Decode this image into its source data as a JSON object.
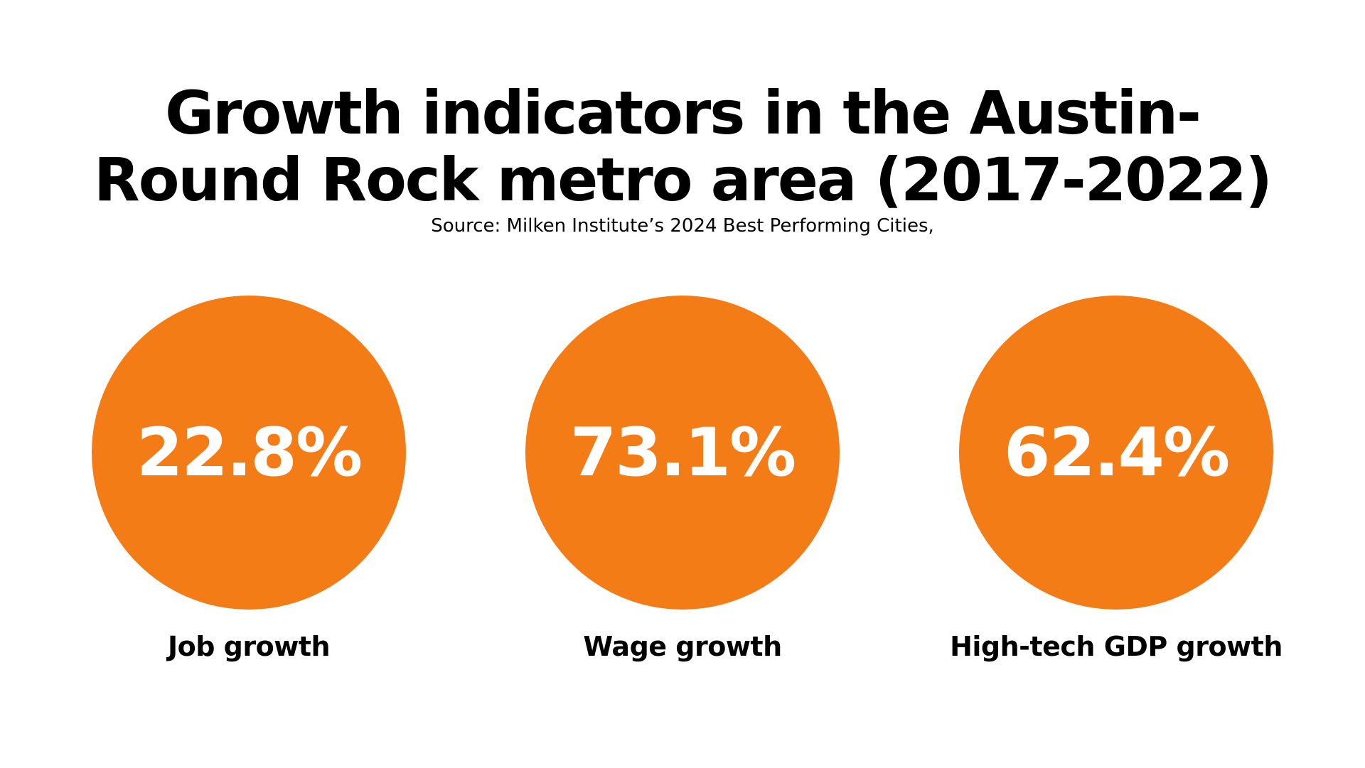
{
  "title_line1": "Growth indicators in the Austin-",
  "title_line2": "Round Rock metro area (2017-2022)",
  "source": "Source: Milken Institute’s 2024 Best Performing Cities,",
  "colors": {
    "circle": "#f47c16",
    "value_text": "#ffffff",
    "text": "#000000"
  },
  "chart_data": {
    "type": "table",
    "title": "Growth indicators in the Austin-Round Rock metro area (2017-2022)",
    "subtitle": "Source: Milken Institute’s 2024 Best Performing Cities,",
    "categories": [
      "Job growth",
      "Wage growth",
      "High-tech GDP growth"
    ],
    "values": [
      22.8,
      73.1,
      62.4
    ],
    "value_labels": [
      "22.8%",
      "73.1%",
      "62.4%"
    ]
  }
}
